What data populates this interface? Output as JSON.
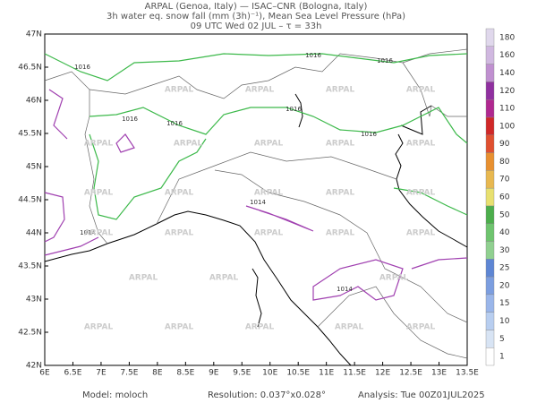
{
  "header": {
    "lines": [
      "ARPAL (Genoa, Italy)  —  ISAC–CNR (Bologna, Italy)",
      "3h water eq. snow fall (mm (3h)⁻¹), Mean Sea Level Pressure (hPa)",
      "09 UTC Wed 02 JUL  –  τ = 33h"
    ]
  },
  "map": {
    "lon_labels": [
      "6E",
      "6.5E",
      "7E",
      "7.5E",
      "8E",
      "8.5E",
      "9E",
      "9.5E",
      "10E",
      "10.5E",
      "11E",
      "11.5E",
      "12E",
      "12.5E",
      "13E",
      "13.5E"
    ],
    "lat_labels": [
      "42N",
      "42.5N",
      "43N",
      "43.5N",
      "44N",
      "44.5N",
      "45N",
      "45.5N",
      "46N",
      "46.5N",
      "47N"
    ],
    "contour_labels": [
      "1016",
      "1016",
      "1016",
      "1016",
      "1016",
      "1016",
      "1016",
      "1014",
      "1014",
      "1014"
    ],
    "watermark": "ARPAL"
  },
  "colorbar": {
    "labels": [
      1,
      5,
      10,
      15,
      20,
      25,
      30,
      40,
      50,
      60,
      70,
      80,
      90,
      100,
      110,
      120,
      140,
      160,
      180
    ]
  },
  "footer": {
    "model": "Model: moloch",
    "resolution": "Resolution: 0.037°x0.028°",
    "analysis": "Analysis: Tue 00Z01JUL2025"
  }
}
